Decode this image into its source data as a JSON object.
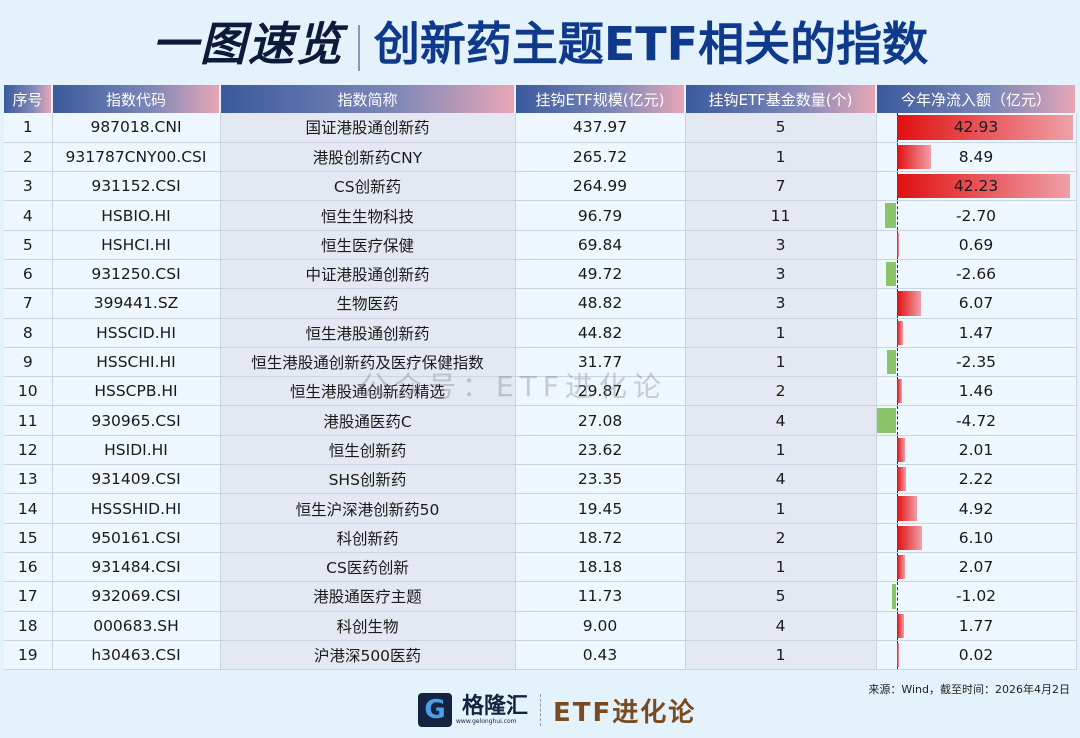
{
  "title": {
    "left": "一图速览",
    "right": "创新药主题ETF相关的指数"
  },
  "headers": [
    "序号",
    "指数代码",
    "指数简称",
    "挂钩ETF规模(亿元)",
    "挂钩ETF基金数量(个)",
    "今年净流入额（亿元）"
  ],
  "rows": [
    [
      "1",
      "987018.CNI",
      "国证港股通创新药",
      "437.97",
      "5",
      "42.93"
    ],
    [
      "2",
      "931787CNY00.CSI",
      "港股创新药CNY",
      "265.72",
      "1",
      "8.49"
    ],
    [
      "3",
      "931152.CSI",
      "CS创新药",
      "264.99",
      "7",
      "42.23"
    ],
    [
      "4",
      "HSBIO.HI",
      "恒生生物科技",
      "96.79",
      "11",
      "-2.70"
    ],
    [
      "5",
      "HSHCI.HI",
      "恒生医疗保健",
      "69.84",
      "3",
      "0.69"
    ],
    [
      "6",
      "931250.CSI",
      "中证港股通创新药",
      "49.72",
      "3",
      "-2.66"
    ],
    [
      "7",
      "399441.SZ",
      "生物医药",
      "48.82",
      "3",
      "6.07"
    ],
    [
      "8",
      "HSSCID.HI",
      "恒生港股通创新药",
      "44.82",
      "1",
      "1.47"
    ],
    [
      "9",
      "HSSCHI.HI",
      "恒生港股通创新药及医疗保健指数",
      "31.77",
      "1",
      "-2.35"
    ],
    [
      "10",
      "HSSCPB.HI",
      "恒生港股通创新药精选",
      "29.87",
      "2",
      "1.46"
    ],
    [
      "11",
      "930965.CSI",
      "港股通医药C",
      "27.08",
      "4",
      "-4.72"
    ],
    [
      "12",
      "HSIDI.HI",
      "恒生创新药",
      "23.62",
      "1",
      "2.01"
    ],
    [
      "13",
      "931409.CSI",
      "SHS创新药",
      "23.35",
      "4",
      "2.22"
    ],
    [
      "14",
      "HSSSHID.HI",
      "恒生沪深港创新药50",
      "19.45",
      "1",
      "4.92"
    ],
    [
      "15",
      "950161.CSI",
      "科创新药",
      "18.72",
      "2",
      "6.10"
    ],
    [
      "16",
      "931484.CSI",
      "CS医药创新",
      "18.18",
      "1",
      "2.07"
    ],
    [
      "17",
      "932069.CSI",
      "港股通医疗主题",
      "11.73",
      "5",
      "-1.02"
    ],
    [
      "18",
      "000683.SH",
      "科创生物",
      "9.00",
      "4",
      "1.77"
    ],
    [
      "19",
      "h30463.CSI",
      "沪港深500医药",
      "0.43",
      "1",
      "0.02"
    ]
  ],
  "colors": {
    "positive": "#e01010",
    "negative": "#8cc46a",
    "header": "#3a5a9c"
  },
  "source": "来源：Wind，截至时间：2026年4月2日",
  "logo": {
    "brand": "格隆汇",
    "url": "www.gelonghui.com",
    "column": "ETF进化论"
  },
  "watermark": "公众号：ETF进化论"
}
